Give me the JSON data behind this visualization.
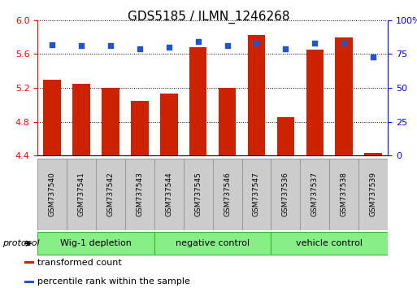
{
  "title": "GDS5185 / ILMN_1246268",
  "samples": [
    "GSM737540",
    "GSM737541",
    "GSM737542",
    "GSM737543",
    "GSM737544",
    "GSM737545",
    "GSM737546",
    "GSM737547",
    "GSM737536",
    "GSM737537",
    "GSM737538",
    "GSM737539"
  ],
  "bar_values": [
    5.3,
    5.25,
    5.2,
    5.05,
    5.13,
    5.68,
    5.2,
    5.82,
    4.85,
    5.65,
    5.8,
    4.43
  ],
  "dot_values": [
    82,
    81,
    81,
    79,
    80,
    84,
    81,
    83,
    79,
    83,
    83,
    73
  ],
  "ylim_left": [
    4.4,
    6.0
  ],
  "ylim_right": [
    0,
    100
  ],
  "yticks_left": [
    4.4,
    4.8,
    5.2,
    5.6,
    6.0
  ],
  "yticks_right": [
    0,
    25,
    50,
    75,
    100
  ],
  "bar_color": "#cc2200",
  "dot_color": "#2255cc",
  "groups": [
    {
      "label": "Wig-1 depletion",
      "start": 0,
      "end": 4
    },
    {
      "label": "negative control",
      "start": 4,
      "end": 8
    },
    {
      "label": "vehicle control",
      "start": 8,
      "end": 12
    }
  ],
  "group_bg_color": "#88ee88",
  "group_edge_color": "#33bb33",
  "sample_box_color": "#cccccc",
  "protocol_label": "protocol",
  "legend_items": [
    {
      "label": "transformed count",
      "color": "#cc2200"
    },
    {
      "label": "percentile rank within the sample",
      "color": "#2255cc"
    }
  ]
}
